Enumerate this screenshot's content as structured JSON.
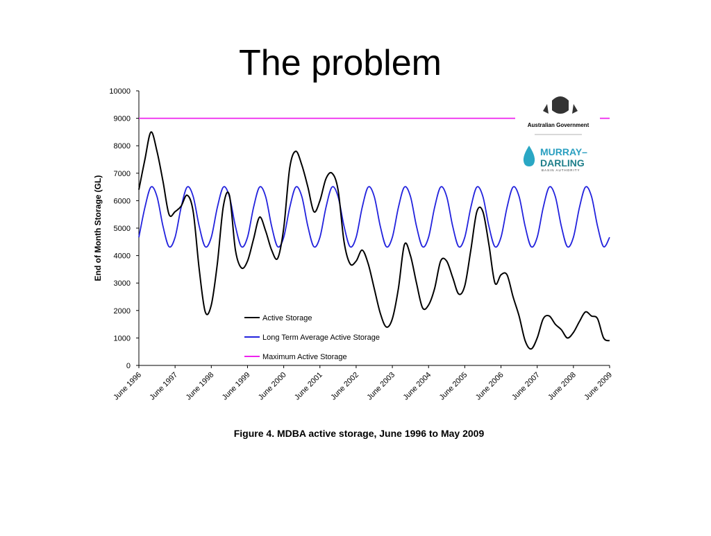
{
  "slide_title": "The problem",
  "logo": {
    "government": "Australian Government",
    "line1": "MURRAY–",
    "line2": "DARLING",
    "line3": "BASIN AUTHORITY"
  },
  "chart_data": {
    "type": "line",
    "caption": "Figure 4.  MDBA active storage, June 1996 to May 2009",
    "y_label": "End of Month Storage (GL)",
    "xlim": [
      0,
      156
    ],
    "xticks": [
      {
        "value": 0,
        "label": "June 1996"
      },
      {
        "value": 12,
        "label": "June 1997"
      },
      {
        "value": 24,
        "label": "June 1998"
      },
      {
        "value": 36,
        "label": "June 1999"
      },
      {
        "value": 48,
        "label": "June 2000"
      },
      {
        "value": 60,
        "label": "June 2001"
      },
      {
        "value": 72,
        "label": "June 2002"
      },
      {
        "value": 84,
        "label": "June 2003"
      },
      {
        "value": 96,
        "label": "June 2004"
      },
      {
        "value": 108,
        "label": "June 2005"
      },
      {
        "value": 120,
        "label": "June 2006"
      },
      {
        "value": 132,
        "label": "June 2007"
      },
      {
        "value": 144,
        "label": "June 2008"
      },
      {
        "value": 156,
        "label": "June 2009"
      }
    ],
    "ylim": [
      0,
      10000
    ],
    "yticks": [
      0,
      1000,
      2000,
      3000,
      4000,
      5000,
      6000,
      7000,
      8000,
      9000,
      10000
    ],
    "grid": false,
    "x": [
      0,
      2,
      4,
      6,
      8,
      10,
      12,
      14,
      16,
      18,
      20,
      22,
      24,
      26,
      28,
      30,
      32,
      34,
      36,
      38,
      40,
      42,
      44,
      46,
      48,
      50,
      52,
      54,
      56,
      58,
      60,
      62,
      64,
      66,
      68,
      70,
      72,
      74,
      76,
      78,
      80,
      82,
      84,
      86,
      88,
      90,
      92,
      94,
      96,
      98,
      100,
      102,
      104,
      106,
      108,
      110,
      112,
      114,
      116,
      118,
      120,
      122,
      124,
      126,
      128,
      130,
      132,
      134,
      136,
      138,
      140,
      142,
      144,
      146,
      148,
      150,
      152,
      154,
      156
    ],
    "series": [
      {
        "name": "Active Storage",
        "color": "#000000",
        "values": [
          6400,
          7500,
          8500,
          7800,
          6700,
          5500,
          5600,
          5800,
          6200,
          5600,
          3500,
          1950,
          2200,
          3700,
          5800,
          6200,
          4200,
          3550,
          3800,
          4600,
          5400,
          4900,
          4200,
          3900,
          5000,
          7200,
          7800,
          7300,
          6500,
          5600,
          6000,
          6800,
          7000,
          6400,
          4500,
          3700,
          3800,
          4200,
          3700,
          2800,
          1900,
          1400,
          1700,
          2800,
          4400,
          4000,
          3000,
          2100,
          2200,
          2800,
          3800,
          3800,
          3200,
          2600,
          2900,
          4200,
          5600,
          5600,
          4400,
          3000,
          3300,
          3300,
          2500,
          1800,
          900,
          600,
          1000,
          1700,
          1800,
          1500,
          1300,
          1000,
          1200,
          1600,
          1950,
          1800,
          1700,
          1000,
          900
        ]
      },
      {
        "name": "Long Term Average Active Storage",
        "color": "#2222dd",
        "values": [
          4667,
          5753,
          6496,
          6153,
          5067,
          4324,
          4667,
          5753,
          6496,
          6153,
          5067,
          4324,
          4667,
          5753,
          6496,
          6153,
          5067,
          4324,
          4667,
          5753,
          6496,
          6153,
          5067,
          4324,
          4667,
          5753,
          6496,
          6153,
          5067,
          4324,
          4667,
          5753,
          6496,
          6153,
          5067,
          4324,
          4667,
          5753,
          6496,
          6153,
          5067,
          4324,
          4667,
          5753,
          6496,
          6153,
          5067,
          4324,
          4667,
          5753,
          6496,
          6153,
          5067,
          4324,
          4667,
          5753,
          6496,
          6153,
          5067,
          4324,
          4667,
          5753,
          6496,
          6153,
          5067,
          4324,
          4667,
          5753,
          6496,
          6153,
          5067,
          4324,
          4667,
          5753,
          6496,
          6153,
          5067,
          4324,
          4667
        ]
      },
      {
        "name": "Maximum Active Storage",
        "color": "#ee22ee",
        "x": [
          0,
          156
        ],
        "values": [
          9000,
          9000
        ]
      }
    ]
  }
}
